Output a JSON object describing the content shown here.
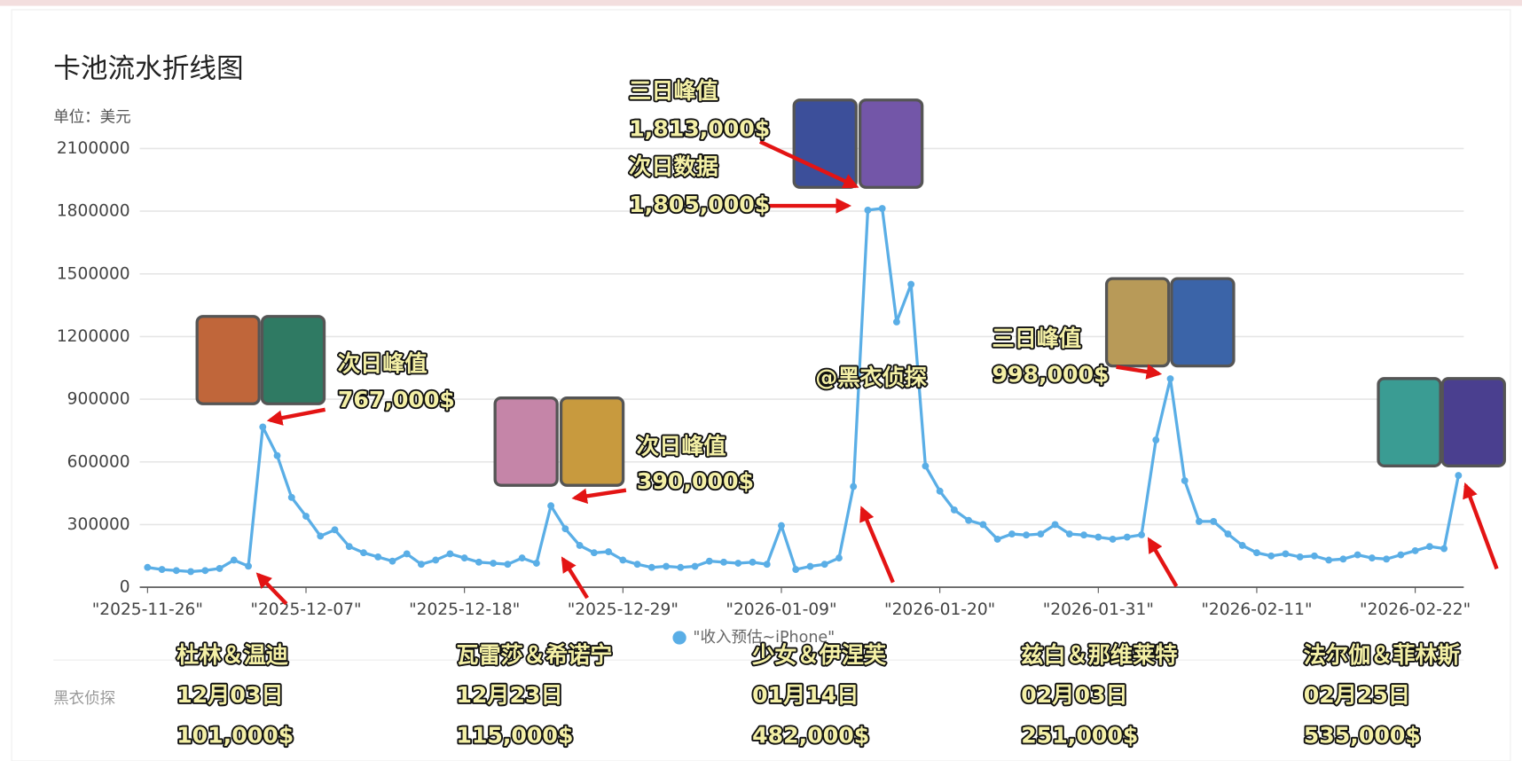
{
  "chart_data": {
    "type": "line",
    "title": "卡池流水折线图",
    "subtitle": "单位：美元",
    "watermark": "黑衣侦探",
    "categories": [
      "\"2025-11-26\"",
      null,
      null,
      null,
      null,
      null,
      null,
      null,
      null,
      null,
      null,
      "\"2025-12-07\"",
      null,
      null,
      null,
      null,
      null,
      null,
      null,
      null,
      null,
      null,
      "\"2025-12-18\"",
      null,
      null,
      null,
      null,
      null,
      null,
      null,
      null,
      null,
      null,
      "\"2025-12-29\"",
      null,
      null,
      null,
      null,
      null,
      null,
      null,
      null,
      null,
      null,
      "\"2026-01-09\"",
      null,
      null,
      null,
      null,
      null,
      null,
      null,
      null,
      null,
      null,
      "\"2026-01-20\"",
      null,
      null,
      null,
      null,
      null,
      null,
      null,
      null,
      null,
      null,
      "\"2026-01-31\"",
      null,
      null,
      null,
      null,
      null,
      null,
      null,
      null,
      null,
      null,
      "\"2026-02-11\"",
      null,
      null,
      null,
      null,
      null,
      null,
      null,
      null,
      null,
      null,
      "\"2026-02-22\"",
      null,
      null,
      null
    ],
    "series": [
      {
        "name": "\"收入预估~iPhone\"",
        "color": "#5aaee6",
        "values": [
          95000,
          85000,
          80000,
          75000,
          80000,
          90000,
          130000,
          101000,
          767000,
          630000,
          430000,
          340000,
          245000,
          275000,
          195000,
          165000,
          145000,
          125000,
          160000,
          110000,
          130000,
          160000,
          140000,
          120000,
          115000,
          110000,
          140000,
          115000,
          390000,
          280000,
          200000,
          165000,
          170000,
          130000,
          110000,
          95000,
          100000,
          95000,
          100000,
          125000,
          120000,
          115000,
          120000,
          110000,
          295000,
          85000,
          100000,
          110000,
          140000,
          482000,
          1805000,
          1813000,
          1270000,
          1450000,
          580000,
          460000,
          370000,
          320000,
          300000,
          230000,
          255000,
          250000,
          255000,
          300000,
          255000,
          250000,
          240000,
          230000,
          240000,
          251000,
          705000,
          998000,
          510000,
          315000,
          315000,
          255000,
          200000,
          165000,
          150000,
          160000,
          145000,
          150000,
          130000,
          135000,
          155000,
          140000,
          135000,
          155000,
          175000,
          195000,
          185000,
          535000
        ]
      }
    ],
    "ylim": [
      0,
      2100000
    ],
    "yticks": [
      0,
      300000,
      600000,
      900000,
      1200000,
      1500000,
      1800000,
      2100000
    ],
    "grid": true,
    "legend": "bottom",
    "annotations": [
      {
        "lines": [
          "次日峰值",
          "767,000$"
        ]
      },
      {
        "lines": [
          "次日峰值",
          "390,000$"
        ]
      },
      {
        "lines": [
          "三日峰值",
          "1,813,000$",
          "次日数据",
          "1,805,000$"
        ]
      },
      {
        "lines": [
          "@黑衣侦探"
        ]
      },
      {
        "lines": [
          "三日峰值",
          "998,000$"
        ]
      }
    ],
    "banners": [
      {
        "characters": "杜林＆温迪",
        "date": "12月03日",
        "revenue": "101,000$"
      },
      {
        "characters": "瓦雷莎＆希诺宁",
        "date": "12月23日",
        "revenue": "115,000$"
      },
      {
        "characters": "少女＆伊涅芙",
        "date": "01月14日",
        "revenue": "482,000$"
      },
      {
        "characters": "兹白＆那维莱特",
        "date": "02月03日",
        "revenue": "251,000$"
      },
      {
        "characters": "法尔伽＆菲林斯",
        "date": "02月25日",
        "revenue": "535,000$"
      }
    ]
  }
}
